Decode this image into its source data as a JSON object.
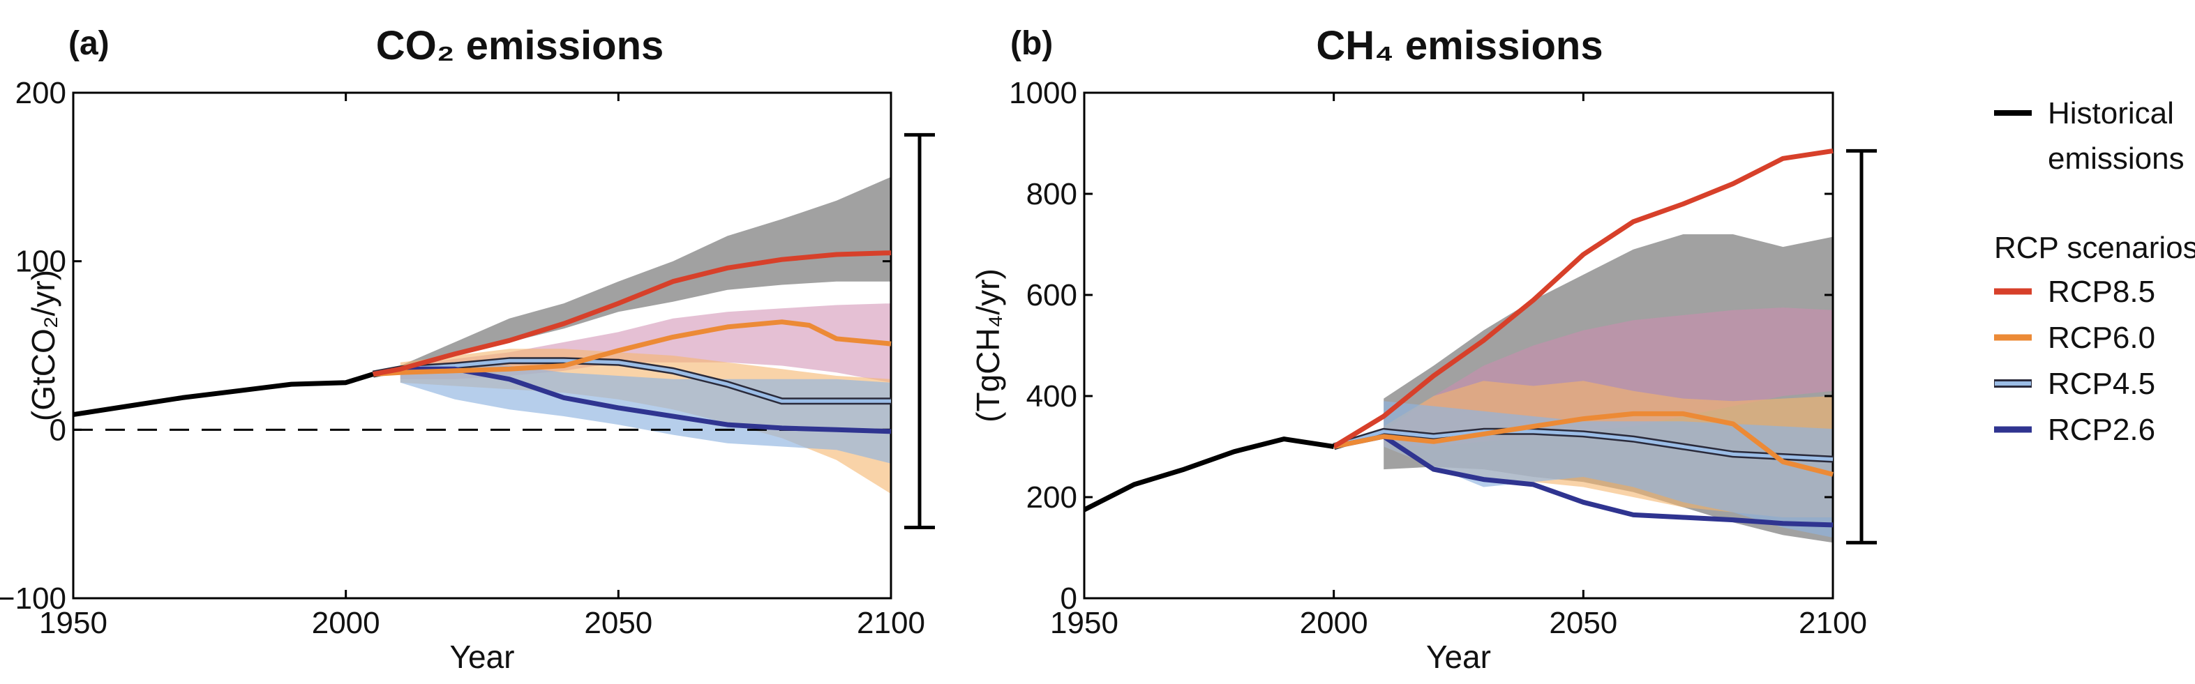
{
  "colors": {
    "historical": "#000000",
    "rcp85": "#d7402a",
    "rcp60": "#ec8a36",
    "rcp45": "#9bbde6",
    "rcp45_outline": "#2a2a3a",
    "rcp26": "#2f3490",
    "band_rcp85": "#8a8a8a",
    "band_rcp60": "#cf8cb0",
    "band_rcp45": "#f5b56e",
    "band_rcp26": "#8fb3e0"
  },
  "legend": {
    "historical": [
      "Historical",
      "emissions"
    ],
    "scenarios_title": "RCP scenarios",
    "items": [
      "RCP8.5",
      "RCP6.0",
      "RCP4.5",
      "RCP2.6"
    ]
  },
  "chart_data": [
    {
      "type": "line",
      "panel_label": "(a)",
      "title": "CO₂ emissions",
      "xlabel": "Year",
      "ylabel": "(GtCO₂/yr)",
      "xlim": [
        1950,
        2100
      ],
      "ylim": [
        -100,
        200
      ],
      "xticks": [
        1950,
        2000,
        2050,
        2100
      ],
      "yticks": [
        -100,
        0,
        100,
        200
      ],
      "ytick_labels": [
        "−100",
        "0",
        "100",
        "200"
      ],
      "zero_line": true,
      "range_bar": [
        -58,
        175
      ],
      "historical": {
        "x": [
          1950,
          1960,
          1970,
          1980,
          1990,
          2000,
          2005
        ],
        "y": [
          9,
          14,
          19,
          23,
          27,
          28,
          33
        ]
      },
      "series": [
        {
          "name": "RCP8.5",
          "key": "rcp85",
          "x": [
            2005,
            2010,
            2020,
            2030,
            2040,
            2050,
            2060,
            2070,
            2080,
            2090,
            2100
          ],
          "y": [
            33,
            36,
            45,
            53,
            63,
            75,
            88,
            96,
            101,
            104,
            105
          ]
        },
        {
          "name": "RCP6.0",
          "key": "rcp60",
          "x": [
            2005,
            2010,
            2020,
            2030,
            2040,
            2050,
            2060,
            2070,
            2080,
            2085,
            2090,
            2100
          ],
          "y": [
            33,
            34,
            35,
            36,
            38,
            47,
            55,
            61,
            64,
            62,
            54,
            51
          ]
        },
        {
          "name": "RCP4.5",
          "key": "rcp45",
          "x": [
            2005,
            2010,
            2020,
            2030,
            2040,
            2050,
            2060,
            2070,
            2080,
            2090,
            2100
          ],
          "y": [
            33,
            36,
            38,
            41,
            41,
            40,
            35,
            27,
            17,
            17,
            17
          ]
        },
        {
          "name": "RCP2.6",
          "key": "rcp26",
          "x": [
            2005,
            2010,
            2020,
            2030,
            2040,
            2050,
            2060,
            2070,
            2080,
            2090,
            2100
          ],
          "y": [
            33,
            36,
            36,
            30,
            19,
            13,
            8,
            3,
            1,
            0,
            -1
          ]
        }
      ],
      "bands": [
        {
          "key": "band_rcp85",
          "x": [
            2010,
            2020,
            2030,
            2040,
            2050,
            2060,
            2070,
            2080,
            2090,
            2100
          ],
          "low": [
            34,
            44,
            52,
            60,
            70,
            76,
            83,
            86,
            88,
            88
          ],
          "high": [
            38,
            52,
            66,
            75,
            88,
            100,
            115,
            125,
            136,
            150
          ]
        },
        {
          "key": "band_rcp60",
          "x": [
            2010,
            2020,
            2030,
            2040,
            2050,
            2060,
            2070,
            2080,
            2090,
            2100
          ],
          "low": [
            30,
            30,
            32,
            35,
            40,
            40,
            40,
            38,
            34,
            28
          ],
          "high": [
            38,
            42,
            46,
            52,
            58,
            66,
            70,
            72,
            74,
            75
          ]
        },
        {
          "key": "band_rcp45",
          "x": [
            2010,
            2020,
            2030,
            2040,
            2050,
            2060,
            2070,
            2080,
            2090,
            2100
          ],
          "low": [
            28,
            26,
            24,
            22,
            18,
            12,
            4,
            -5,
            -18,
            -38
          ],
          "high": [
            40,
            44,
            48,
            48,
            46,
            44,
            40,
            36,
            32,
            30
          ]
        },
        {
          "key": "band_rcp26",
          "x": [
            2010,
            2020,
            2030,
            2040,
            2050,
            2060,
            2070,
            2080,
            2090,
            2100
          ],
          "low": [
            28,
            18,
            12,
            8,
            3,
            -3,
            -8,
            -10,
            -12,
            -20
          ],
          "high": [
            38,
            40,
            38,
            34,
            32,
            30,
            30,
            30,
            30,
            28
          ]
        }
      ]
    },
    {
      "type": "line",
      "panel_label": "(b)",
      "title": "CH₄ emissions",
      "xlabel": "Year",
      "ylabel": "(TgCH₄/yr)",
      "xlim": [
        1950,
        2100
      ],
      "ylim": [
        0,
        1000
      ],
      "xticks": [
        1950,
        2000,
        2050,
        2100
      ],
      "yticks": [
        0,
        200,
        400,
        600,
        800,
        1000
      ],
      "ytick_labels": [
        "0",
        "200",
        "400",
        "600",
        "800",
        "1000"
      ],
      "zero_line": false,
      "range_bar": [
        110,
        885
      ],
      "historical": {
        "x": [
          1950,
          1960,
          1970,
          1980,
          1990,
          2000
        ],
        "y": [
          175,
          225,
          255,
          290,
          315,
          300
        ]
      },
      "series": [
        {
          "name": "RCP8.5",
          "key": "rcp85",
          "x": [
            2000,
            2010,
            2020,
            2030,
            2040,
            2050,
            2060,
            2070,
            2080,
            2090,
            2100
          ],
          "y": [
            300,
            360,
            440,
            510,
            590,
            680,
            745,
            780,
            820,
            870,
            885
          ]
        },
        {
          "name": "RCP6.0",
          "key": "rcp60",
          "x": [
            2000,
            2010,
            2020,
            2030,
            2040,
            2050,
            2060,
            2070,
            2080,
            2090,
            2100
          ],
          "y": [
            300,
            320,
            310,
            325,
            340,
            355,
            365,
            365,
            345,
            270,
            245
          ]
        },
        {
          "name": "RCP4.5",
          "key": "rcp45",
          "x": [
            2000,
            2010,
            2020,
            2030,
            2040,
            2050,
            2060,
            2070,
            2080,
            2090,
            2100
          ],
          "y": [
            300,
            330,
            320,
            330,
            330,
            325,
            315,
            300,
            285,
            280,
            275
          ]
        },
        {
          "name": "RCP2.6",
          "key": "rcp26",
          "x": [
            2000,
            2010,
            2020,
            2030,
            2040,
            2050,
            2060,
            2070,
            2080,
            2090,
            2100
          ],
          "y": [
            300,
            320,
            255,
            235,
            225,
            190,
            165,
            160,
            155,
            148,
            145
          ]
        }
      ],
      "bands": [
        {
          "key": "band_rcp85",
          "x": [
            2010,
            2020,
            2030,
            2040,
            2050,
            2060,
            2070,
            2080,
            2090,
            2100
          ],
          "low": [
            255,
            260,
            255,
            240,
            230,
            210,
            180,
            150,
            125,
            110
          ],
          "high": [
            395,
            460,
            530,
            590,
            640,
            690,
            720,
            720,
            695,
            715
          ]
        },
        {
          "key": "band_rcp60",
          "x": [
            2010,
            2020,
            2030,
            2040,
            2050,
            2060,
            2070,
            2080,
            2090,
            2100
          ],
          "low": [
            300,
            300,
            310,
            320,
            330,
            340,
            360,
            380,
            400,
            410
          ],
          "high": [
            330,
            400,
            460,
            500,
            530,
            550,
            560,
            570,
            575,
            570
          ]
        },
        {
          "key": "band_rcp45",
          "x": [
            2010,
            2020,
            2030,
            2040,
            2050,
            2060,
            2070,
            2080,
            2090,
            2100
          ],
          "low": [
            300,
            260,
            240,
            230,
            220,
            200,
            180,
            170,
            160,
            160
          ],
          "high": [
            340,
            400,
            430,
            420,
            430,
            410,
            395,
            390,
            395,
            400
          ]
        },
        {
          "key": "band_rcp26",
          "x": [
            2010,
            2020,
            2030,
            2040,
            2050,
            2060,
            2070,
            2080,
            2090,
            2100
          ],
          "low": [
            300,
            260,
            220,
            230,
            240,
            220,
            190,
            170,
            140,
            120
          ],
          "high": [
            390,
            380,
            370,
            360,
            350,
            350,
            350,
            345,
            340,
            335
          ]
        }
      ]
    }
  ]
}
